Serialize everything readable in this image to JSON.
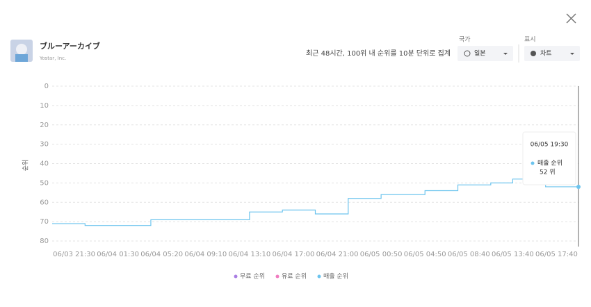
{
  "header": {
    "title": "ブルーアーカイブ",
    "subtitle": "Yostar, Inc.",
    "note": "최근 48시간, 100위 내 순위를 10분 단위로 집계",
    "country_label": "국가",
    "country_value": "일본",
    "display_label": "표시",
    "display_value": "차트"
  },
  "chart_data": {
    "type": "line",
    "y_label": "순위",
    "invert_y": true,
    "grid": true,
    "step": true,
    "categories": [
      null,
      null,
      "06/03 21:30",
      null,
      null,
      null,
      "06/04 01:30",
      null,
      null,
      null,
      "06/04 05:20",
      null,
      null,
      null,
      "06/04 09:10",
      null,
      null,
      null,
      "06/04 13:10",
      null,
      null,
      null,
      "06/04 17:00",
      null,
      null,
      null,
      "06/04 21:00",
      null,
      null,
      null,
      "06/05 00:50",
      null,
      null,
      null,
      "06/05 04:50",
      null,
      null,
      null,
      "06/05 08:40",
      null,
      null,
      null,
      "06/05 13:40",
      null,
      null,
      null,
      "06/05 17:40",
      null,
      null
    ],
    "series": [
      {
        "name": "매출 순위",
        "color": "#6cc4ee",
        "values": [
          71,
          71,
          71,
          72,
          72,
          72,
          72,
          72,
          72,
          69,
          69,
          69,
          69,
          69,
          69,
          69,
          69,
          69,
          65,
          65,
          65,
          64,
          64,
          64,
          66,
          66,
          66,
          58,
          58,
          58,
          56,
          56,
          56,
          56,
          54,
          54,
          54,
          51,
          51,
          51,
          50,
          50,
          48,
          48,
          48,
          52,
          52,
          52,
          52
        ]
      }
    ],
    "legend": [
      {
        "name": "무료 순위",
        "color": "#a97de3"
      },
      {
        "name": "유료 순위",
        "color": "#f07cc0"
      },
      {
        "name": "매출 순위",
        "color": "#6cc4ee"
      }
    ],
    "ylim": [
      0,
      80
    ],
    "yticks": [
      0,
      10,
      20,
      30,
      40,
      50,
      60,
      70,
      80
    ],
    "tooltip": {
      "time": "06/05 19:30",
      "series": "매출 순위",
      "label": "52 위"
    }
  }
}
